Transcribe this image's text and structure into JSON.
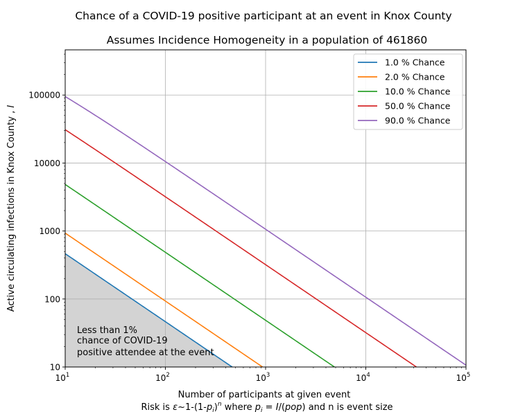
{
  "chart_data": {
    "type": "line",
    "suptitle": "Chance of a COVID-19 positive participant at an event in Knox County",
    "title": "Assumes Incidence Homogeneity in a population of 461860",
    "xlabel": "Number of participants at given event",
    "xlabel_risk": {
      "part1": "Risk is ",
      "eps": "ε",
      "part2": "~1-(1-",
      "p": "p",
      "sub_i": "i",
      "part3": ")",
      "sup_n": "n",
      "part4": " where ",
      "p2": "p",
      "sub_i2": "i",
      "part5": " = ",
      "I": "I",
      "part6": "/(",
      "pop": "pop",
      "part7": ") and n is event size"
    },
    "ylabel": {
      "text": "Active circulating infections in Knox County , ",
      "italic": "I"
    },
    "x_scale": "log",
    "y_scale": "log",
    "xlim": [
      10,
      100000
    ],
    "ylim": [
      10,
      461860
    ],
    "x_ticks": [
      {
        "value": 10,
        "base": "10",
        "exp": "1"
      },
      {
        "value": 100,
        "base": "10",
        "exp": "2"
      },
      {
        "value": 1000,
        "base": "10",
        "exp": "3"
      },
      {
        "value": 10000,
        "base": "10",
        "exp": "4"
      },
      {
        "value": 100000,
        "base": "10",
        "exp": "5"
      }
    ],
    "y_ticks": [
      {
        "value": 10,
        "label": "10"
      },
      {
        "value": 100,
        "label": "100"
      },
      {
        "value": 1000,
        "label": "1000"
      },
      {
        "value": 10000,
        "label": "10000"
      },
      {
        "value": 100000,
        "label": "100000"
      }
    ],
    "grid": true,
    "legend_position": "top-right",
    "population": 461860,
    "series": [
      {
        "name": "1.0 % Chance",
        "risk": 0.01,
        "color": "#1f77b4"
      },
      {
        "name": "2.0 % Chance",
        "risk": 0.02,
        "color": "#ff7f0e"
      },
      {
        "name": "10.0 % Chance",
        "risk": 0.1,
        "color": "#2ca02c"
      },
      {
        "name": "50.0 % Chance",
        "risk": 0.5,
        "color": "#d62728"
      },
      {
        "name": "90.0 % Chance",
        "risk": 0.9,
        "color": "#9467bd"
      }
    ],
    "shaded_region": {
      "under_series": "1.0 % Chance",
      "color": "#d3d3d3",
      "annotation": [
        "Less than 1%",
        "chance of COVID-19",
        "positive attendee at the event"
      ]
    }
  }
}
